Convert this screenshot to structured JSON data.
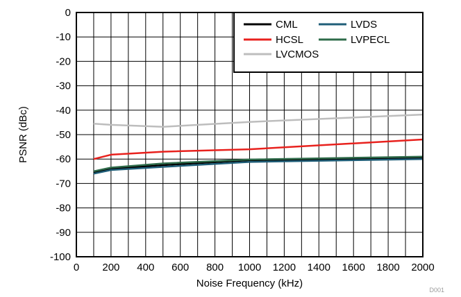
{
  "chart_data": {
    "type": "line",
    "title": "",
    "xlabel": "Noise Frequency (kHz)",
    "ylabel": "PSNR (dBc)",
    "xlim": [
      0,
      2000
    ],
    "ylim": [
      -100,
      0
    ],
    "xticks": [
      0,
      200,
      400,
      600,
      800,
      1000,
      1200,
      1400,
      1600,
      1800,
      2000
    ],
    "yticks": [
      0,
      -10,
      -20,
      -30,
      -40,
      -50,
      -60,
      -70,
      -80,
      -90,
      -100
    ],
    "x_minor_step": 100,
    "grid": true,
    "legend_position": "top-right",
    "series": [
      {
        "name": "CML",
        "color": "#000000",
        "x": [
          100,
          200,
          500,
          1000,
          2000
        ],
        "y": [
          -65.5,
          -64,
          -62.5,
          -60.5,
          -59.5
        ]
      },
      {
        "name": "HCSL",
        "color": "#e8211d",
        "x": [
          100,
          200,
          500,
          1000,
          2000
        ],
        "y": [
          -60,
          -58.2,
          -57,
          -56,
          -52
        ]
      },
      {
        "name": "LVCMOS",
        "color": "#bdbdbd",
        "x": [
          100,
          200,
          500,
          1000,
          2000
        ],
        "y": [
          -45.5,
          -46,
          -46.8,
          -44.8,
          -41.8
        ]
      },
      {
        "name": "LVDS",
        "color": "#1f5e78",
        "x": [
          100,
          200,
          500,
          1000,
          2000
        ],
        "y": [
          -66,
          -64.5,
          -63.2,
          -61.2,
          -60
        ]
      },
      {
        "name": "LVPECL",
        "color": "#2e6b4a",
        "x": [
          100,
          200,
          500,
          1000,
          2000
        ],
        "y": [
          -65,
          -63.5,
          -61.8,
          -60.2,
          -59
        ]
      }
    ],
    "legend_layout": {
      "columns": 2,
      "order": [
        [
          "CML",
          "LVDS"
        ],
        [
          "HCSL",
          "LVPECL"
        ],
        [
          "LVCMOS"
        ]
      ]
    },
    "figure_code": "D001"
  }
}
